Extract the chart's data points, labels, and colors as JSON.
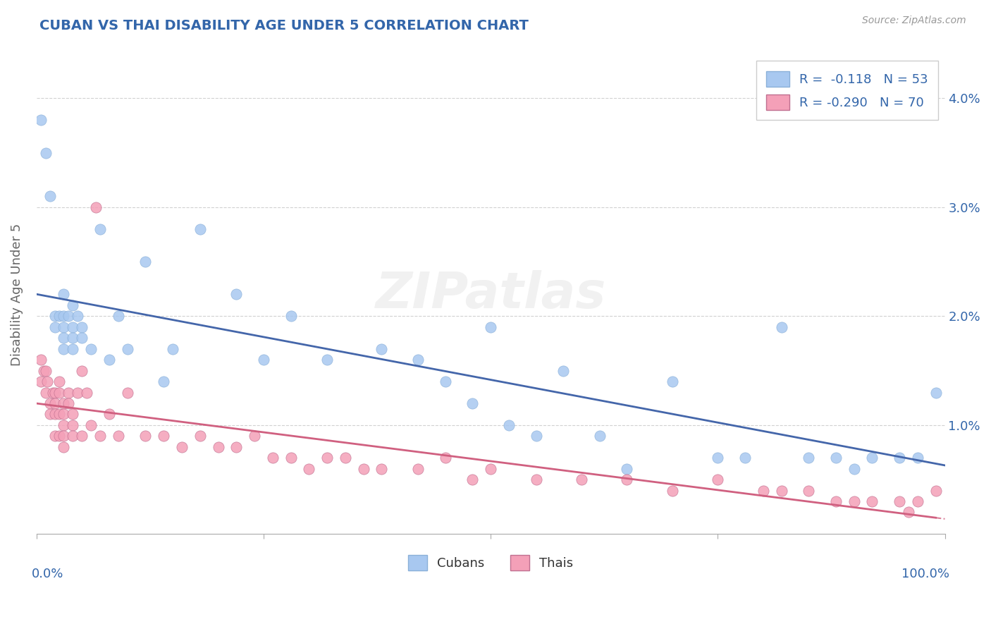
{
  "title": "CUBAN VS THAI DISABILITY AGE UNDER 5 CORRELATION CHART",
  "source": "Source: ZipAtlas.com",
  "ylabel": "Disability Age Under 5",
  "ytick_labels": [
    "1.0%",
    "2.0%",
    "3.0%",
    "4.0%"
  ],
  "ytick_values": [
    0.01,
    0.02,
    0.03,
    0.04
  ],
  "xlim": [
    0,
    1.0
  ],
  "ylim": [
    0.0,
    0.044
  ],
  "cuban_color": "#a8c8f0",
  "thai_color": "#f4a0b8",
  "cuban_line_color": "#4466aa",
  "thai_line_color": "#d06080",
  "background_color": "#ffffff",
  "grid_color": "#cccccc",
  "title_color": "#3366aa",
  "source_color": "#999999",
  "cubans_x": [
    0.005,
    0.01,
    0.015,
    0.02,
    0.02,
    0.025,
    0.03,
    0.03,
    0.03,
    0.03,
    0.03,
    0.035,
    0.04,
    0.04,
    0.04,
    0.04,
    0.045,
    0.05,
    0.05,
    0.06,
    0.07,
    0.08,
    0.09,
    0.1,
    0.12,
    0.14,
    0.15,
    0.18,
    0.22,
    0.25,
    0.28,
    0.32,
    0.38,
    0.42,
    0.45,
    0.48,
    0.5,
    0.52,
    0.55,
    0.58,
    0.62,
    0.65,
    0.7,
    0.75,
    0.78,
    0.82,
    0.85,
    0.88,
    0.9,
    0.92,
    0.95,
    0.97,
    0.99
  ],
  "cubans_y": [
    0.038,
    0.035,
    0.031,
    0.02,
    0.019,
    0.02,
    0.022,
    0.02,
    0.019,
    0.018,
    0.017,
    0.02,
    0.021,
    0.019,
    0.018,
    0.017,
    0.02,
    0.019,
    0.018,
    0.017,
    0.028,
    0.016,
    0.02,
    0.017,
    0.025,
    0.014,
    0.017,
    0.028,
    0.022,
    0.016,
    0.02,
    0.016,
    0.017,
    0.016,
    0.014,
    0.012,
    0.019,
    0.01,
    0.009,
    0.015,
    0.009,
    0.006,
    0.014,
    0.007,
    0.007,
    0.019,
    0.007,
    0.007,
    0.006,
    0.007,
    0.007,
    0.007,
    0.013
  ],
  "thais_x": [
    0.005,
    0.005,
    0.008,
    0.01,
    0.01,
    0.012,
    0.015,
    0.015,
    0.018,
    0.02,
    0.02,
    0.02,
    0.02,
    0.025,
    0.025,
    0.025,
    0.025,
    0.03,
    0.03,
    0.03,
    0.03,
    0.03,
    0.035,
    0.035,
    0.04,
    0.04,
    0.04,
    0.045,
    0.05,
    0.05,
    0.055,
    0.06,
    0.065,
    0.07,
    0.08,
    0.09,
    0.1,
    0.12,
    0.14,
    0.16,
    0.18,
    0.2,
    0.22,
    0.24,
    0.26,
    0.28,
    0.3,
    0.32,
    0.34,
    0.36,
    0.38,
    0.42,
    0.45,
    0.48,
    0.5,
    0.55,
    0.6,
    0.65,
    0.7,
    0.75,
    0.8,
    0.82,
    0.85,
    0.88,
    0.9,
    0.92,
    0.95,
    0.96,
    0.97,
    0.99
  ],
  "thais_y": [
    0.016,
    0.014,
    0.015,
    0.015,
    0.013,
    0.014,
    0.012,
    0.011,
    0.013,
    0.013,
    0.012,
    0.011,
    0.009,
    0.014,
    0.013,
    0.011,
    0.009,
    0.012,
    0.011,
    0.01,
    0.009,
    0.008,
    0.013,
    0.012,
    0.011,
    0.01,
    0.009,
    0.013,
    0.009,
    0.015,
    0.013,
    0.01,
    0.03,
    0.009,
    0.011,
    0.009,
    0.013,
    0.009,
    0.009,
    0.008,
    0.009,
    0.008,
    0.008,
    0.009,
    0.007,
    0.007,
    0.006,
    0.007,
    0.007,
    0.006,
    0.006,
    0.006,
    0.007,
    0.005,
    0.006,
    0.005,
    0.005,
    0.005,
    0.004,
    0.005,
    0.004,
    0.004,
    0.004,
    0.003,
    0.003,
    0.003,
    0.003,
    0.002,
    0.003,
    0.004
  ]
}
